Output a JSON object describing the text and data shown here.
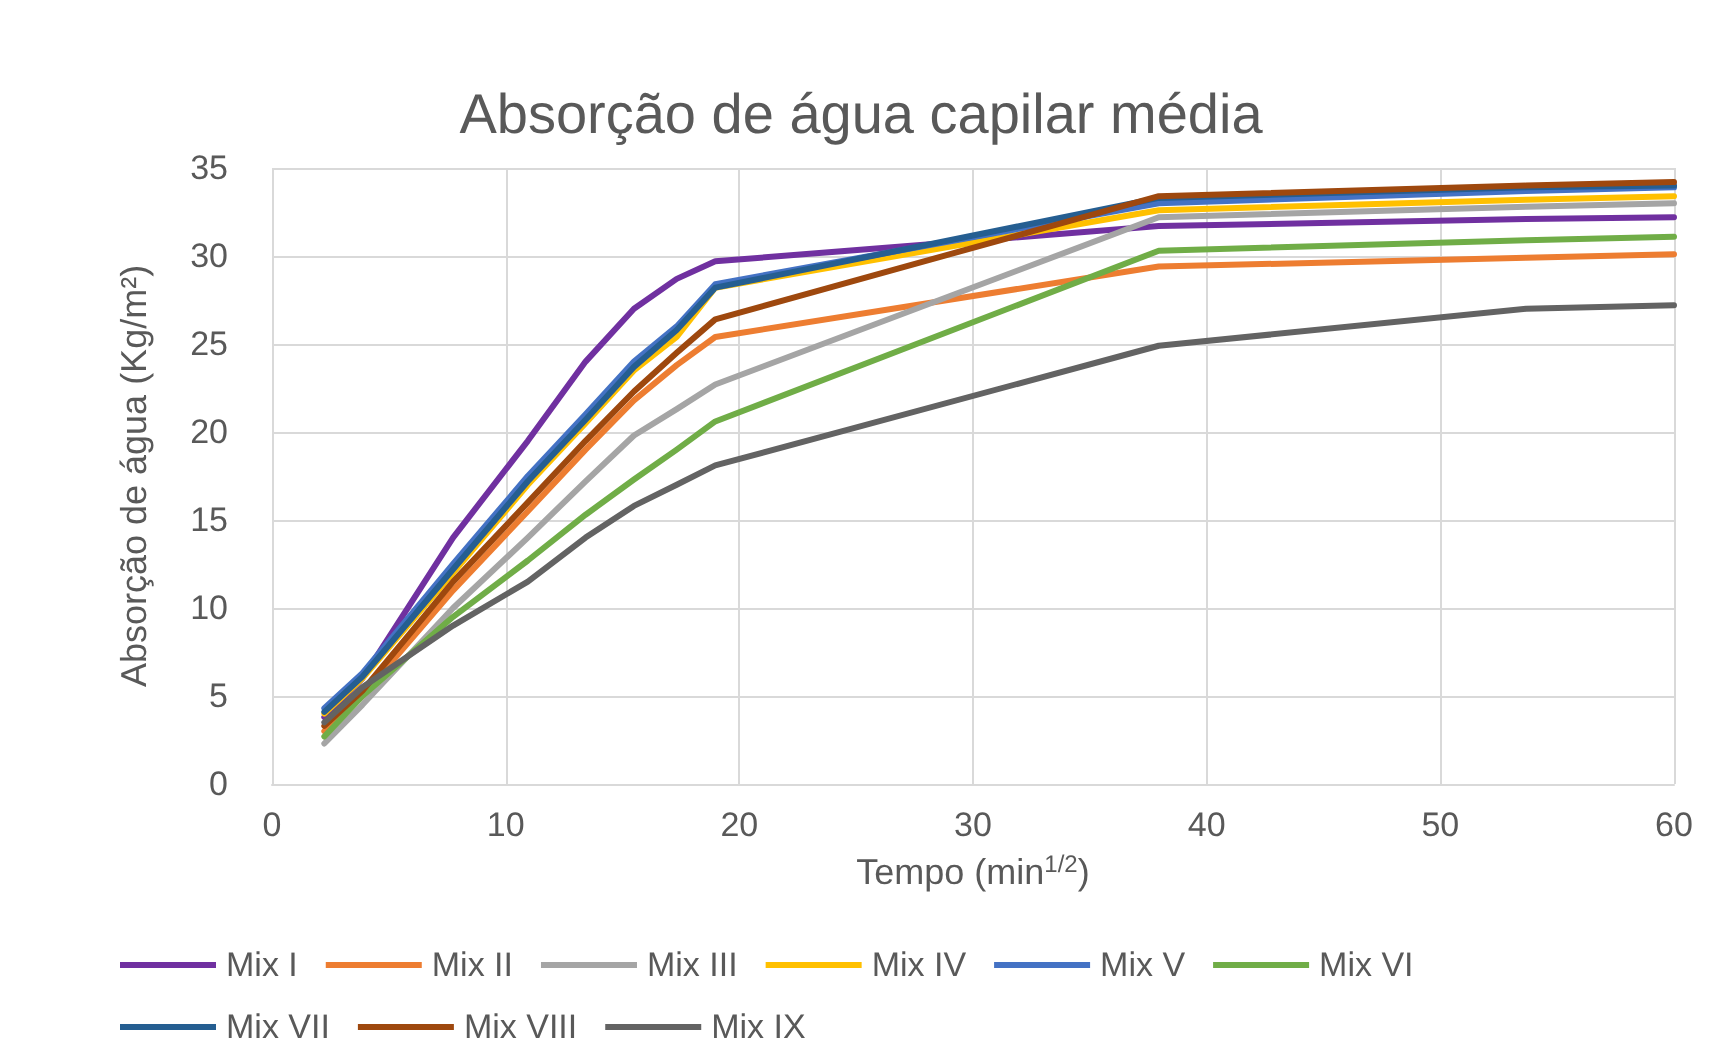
{
  "chart_data": {
    "type": "line",
    "title": "Absorção de água capilar média",
    "xlabel": "Tempo (min$^{1/2}$)",
    "ylabel": "Absorção de água (Kg/m²)",
    "x": [
      2.24,
      3.87,
      7.75,
      10.95,
      13.42,
      15.49,
      17.32,
      18.97,
      37.95,
      53.67,
      60
    ],
    "xlim": [
      0,
      60
    ],
    "xticks": [
      0,
      10,
      20,
      30,
      40,
      50,
      60
    ],
    "ylim": [
      0,
      35
    ],
    "yticks": [
      0,
      5,
      10,
      15,
      20,
      25,
      30,
      35
    ],
    "grid": true,
    "legend": "bottom",
    "marker": "none",
    "line_style": "solid",
    "series": [
      {
        "name": "Mix I",
        "color": "#7030a0",
        "values": [
          3.8,
          6,
          14,
          19.5,
          24,
          27,
          28.7,
          29.7,
          31.7,
          32.1,
          32.2
        ]
      },
      {
        "name": "Mix II",
        "color": "#ed7d31",
        "values": [
          3.0,
          5,
          11,
          15.5,
          19,
          21.8,
          23.8,
          25.4,
          29.4,
          29.9,
          30.1
        ]
      },
      {
        "name": "Mix III",
        "color": "#a5a5a5",
        "values": [
          2.3,
          4.5,
          10,
          14,
          17.2,
          19.8,
          21.3,
          22.7,
          32.2,
          32.8,
          33.0
        ]
      },
      {
        "name": "Mix IV",
        "color": "#ffc000",
        "values": [
          4.0,
          6.0,
          12,
          17,
          20.5,
          23.5,
          25.4,
          28.2,
          32.6,
          33.2,
          33.4
        ]
      },
      {
        "name": "Mix V",
        "color": "#4472c4",
        "values": [
          4.3,
          6.3,
          12.5,
          17.5,
          21,
          24,
          26,
          28.4,
          33.0,
          33.7,
          33.9
        ]
      },
      {
        "name": "Mix VI",
        "color": "#70ad47",
        "values": [
          2.7,
          5,
          9.5,
          12.7,
          15.3,
          17.3,
          19,
          20.6,
          30.3,
          30.9,
          31.1
        ]
      },
      {
        "name": "Mix VII",
        "color": "#255e91",
        "values": [
          4.1,
          6.1,
          12.2,
          17.2,
          20.7,
          23.7,
          25.8,
          28.2,
          33.3,
          33.9,
          34.0
        ]
      },
      {
        "name": "Mix VIII",
        "color": "#9e480e",
        "values": [
          3.3,
          5.3,
          11.5,
          16,
          19.5,
          22.3,
          24.5,
          26.4,
          33.4,
          34.0,
          34.2
        ]
      },
      {
        "name": "Mix IX",
        "color": "#636363",
        "values": [
          3.5,
          5.5,
          9,
          11.5,
          14,
          15.8,
          17,
          18.1,
          24.9,
          27.0,
          27.2
        ]
      }
    ]
  }
}
